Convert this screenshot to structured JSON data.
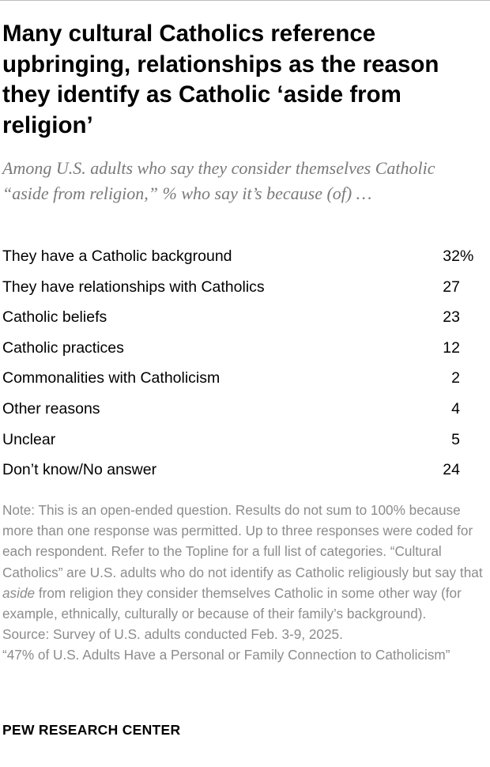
{
  "title": "Many cultural Catholics reference upbringing, relationships as the reason they identify as Catholic ‘aside from religion’",
  "subtitle": "Among U.S. adults who say they consider themselves Catholic “aside from religion,” % who say it’s because (of) …",
  "chart_data": {
    "type": "table",
    "unit": "%",
    "rows": [
      {
        "label": "They have a Catholic background",
        "value": 32
      },
      {
        "label": "They have relationships with Catholics",
        "value": 27
      },
      {
        "label": "Catholic beliefs",
        "value": 23
      },
      {
        "label": "Catholic practices",
        "value": 12
      },
      {
        "label": "Commonalities with Catholicism",
        "value": 2
      },
      {
        "label": "Other reasons",
        "value": 4
      },
      {
        "label": "Unclear",
        "value": 5
      },
      {
        "label": "Don’t know/No answer",
        "value": 24
      }
    ]
  },
  "note": {
    "before_emphasis": "Note: This is an open-ended question. Results do not sum to 100% because more than one response was permitted. Up to three responses were coded for each respondent. Refer to the Topline for a full list of categories. “Cultural Catholics” are U.S. adults who do not identify as Catholic religiously but say that ",
    "emphasis": "aside",
    "after_emphasis": " from religion they consider themselves Catholic in some other way (for example, ethnically, culturally or because of their family’s background).",
    "source": "Source: Survey of U.S. adults conducted Feb. 3-9, 2025.",
    "report": "“47% of U.S. Adults Have a Personal or Family Connection to Catholicism”"
  },
  "footer": {
    "logo": "PEW RESEARCH CENTER"
  }
}
